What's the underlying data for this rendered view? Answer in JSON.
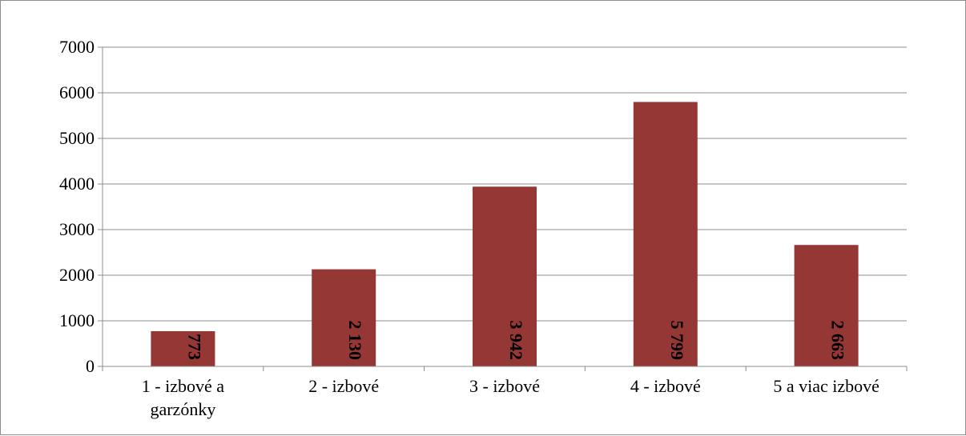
{
  "chart_data": {
    "type": "bar",
    "title": "",
    "xlabel": "",
    "ylabel": "",
    "categories": [
      "1 - izbové a garzónky",
      "2 - izbové",
      "3 - izbové",
      "4 - izbové",
      "5 a viac izbové"
    ],
    "category_lines": [
      [
        "1 - izbové a",
        "garzónky"
      ],
      [
        "2 - izbové"
      ],
      [
        "3 - izbové"
      ],
      [
        "4 - izbové"
      ],
      [
        "5 a viac izbové"
      ]
    ],
    "values": [
      773,
      2130,
      3942,
      5799,
      2663
    ],
    "data_labels": [
      "773",
      "2 130",
      "3 942",
      "5 799",
      "2 663"
    ],
    "ylim": [
      0,
      7000
    ],
    "yticks": [
      0,
      1000,
      2000,
      3000,
      4000,
      5000,
      6000,
      7000
    ],
    "grid": true,
    "legend": "none",
    "bar_color": "#953735"
  }
}
